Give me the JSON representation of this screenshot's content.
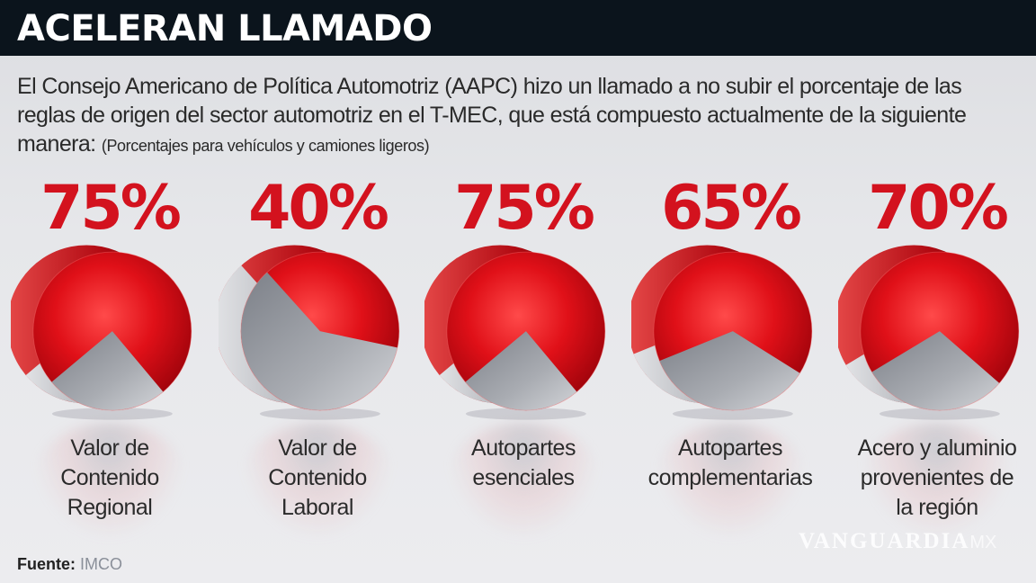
{
  "header": {
    "title": "ACELERAN LLAMADO"
  },
  "intro": {
    "text": "El Consejo Americano de Política Automotriz (AAPC) hizo un llamado a no subir el porcentaje de las reglas de origen del sector automotriz en el T-MEC, que está compuesto actualmente de la siguiente manera: ",
    "note": "(Porcentajes para vehículos y camiones ligeros)"
  },
  "items": [
    {
      "pct_label": "75%",
      "value": 75,
      "label": "Valor de Contenido Regional",
      "lines": [
        "Valor de",
        "Contenido",
        "Regional"
      ]
    },
    {
      "pct_label": "40%",
      "value": 40,
      "label": "Valor de Contenido Laboral",
      "lines": [
        "Valor de",
        "Contenido",
        "Laboral"
      ]
    },
    {
      "pct_label": "75%",
      "value": 75,
      "label": "Autopartes esenciales",
      "lines": [
        "Autopartes",
        "esenciales"
      ]
    },
    {
      "pct_label": "65%",
      "value": 65,
      "label": "Autopartes complementarias",
      "lines": [
        "Autopartes",
        "complementarias"
      ]
    },
    {
      "pct_label": "70%",
      "value": 70,
      "label": "Acero y aluminio provenientes de la región",
      "lines": [
        "Acero y aluminio",
        "provenientes de",
        "la región"
      ]
    }
  ],
  "footer": {
    "source_label": "Fuente:",
    "source_value": " IMCO",
    "watermark": "VANGUARDIA",
    "watermark_suffix": "MX"
  },
  "colors": {
    "accent_red": "#d3121e",
    "title_bg": "#0b141c",
    "pie_red": "#d8141c",
    "pie_gray": "#9c9fa6"
  },
  "chart_data": {
    "type": "pie",
    "title": "ACELERAN LLAMADO",
    "subtitle": "Reglas de origen del sector automotriz en el T-MEC (Porcentajes para vehículos y camiones ligeros)",
    "categories": [
      "Valor de Contenido Regional",
      "Valor de Contenido Laboral",
      "Autopartes esenciales",
      "Autopartes complementarias",
      "Acero y aluminio provenientes de la región"
    ],
    "values": [
      75,
      40,
      75,
      65,
      70
    ],
    "unit": "%",
    "source": "IMCO"
  }
}
